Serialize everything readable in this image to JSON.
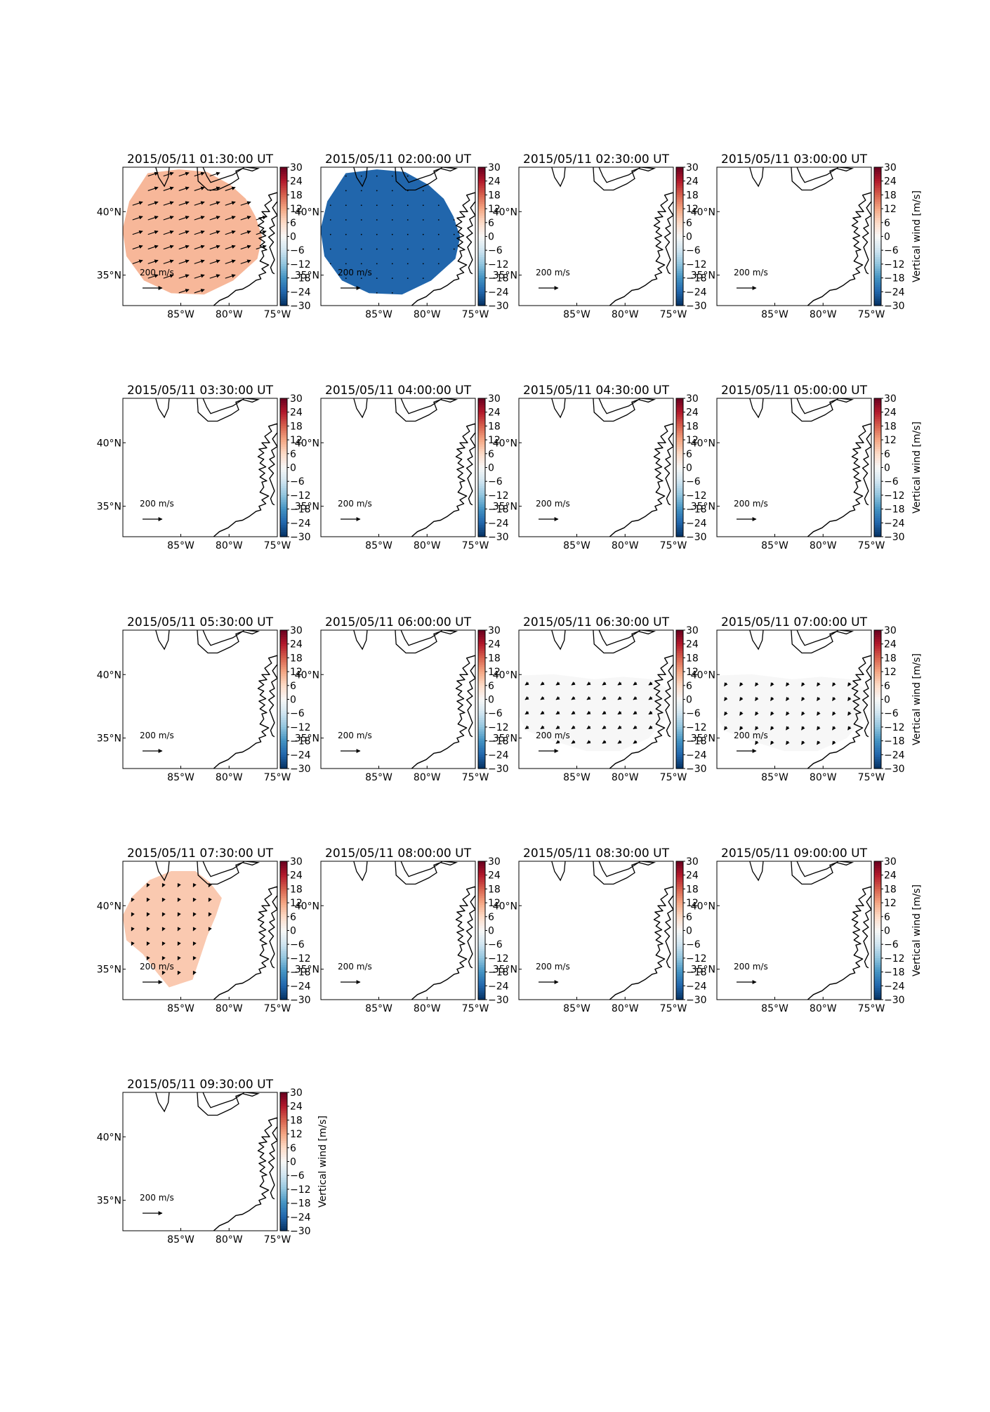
{
  "chart_data": {
    "type": "heatmap",
    "layout": {
      "rows": 5,
      "cols": 4
    },
    "xlim": [
      -91,
      -75
    ],
    "ylim": [
      32.6,
      43.5
    ],
    "xticks": [
      -85,
      -80,
      -75
    ],
    "xtick_labels": [
      "85°W",
      "80°W",
      "75°W"
    ],
    "yticks": [
      35,
      40
    ],
    "ytick_labels": [
      "35°N",
      "40°N"
    ],
    "colorbar": {
      "label": "Vertical wind [m/s]",
      "range": [
        -30,
        30
      ],
      "ticks": [
        30,
        24,
        18,
        12,
        6,
        0,
        -6,
        -12,
        -18,
        -24,
        -30
      ],
      "ticklabels": [
        "30",
        "24",
        "18",
        "12",
        "6",
        "0",
        "−6",
        "−12",
        "−18",
        "−24",
        "−30"
      ],
      "colormap": "RdBu_r"
    },
    "reference_vector": {
      "value": 200,
      "unit_numerator": "m",
      "unit_denominator": "s"
    },
    "panels": [
      {
        "title": "2015/05/11 01:30:00 UT",
        "vertical_wind": 10,
        "shape": "round",
        "vector": [
          9,
          3
        ],
        "colorbar_label": false
      },
      {
        "title": "2015/05/11 02:00:00 UT",
        "vertical_wind": -24,
        "shape": "round",
        "vector": [
          0,
          0
        ],
        "colorbar_label": false
      },
      {
        "title": "2015/05/11 02:30:00 UT",
        "vertical_wind": null,
        "colorbar_label": false
      },
      {
        "title": "2015/05/11 03:00:00 UT",
        "vertical_wind": null,
        "colorbar_label": true
      },
      {
        "title": "2015/05/11 03:30:00 UT",
        "vertical_wind": null,
        "colorbar_label": false
      },
      {
        "title": "2015/05/11 04:00:00 UT",
        "vertical_wind": null,
        "colorbar_label": false
      },
      {
        "title": "2015/05/11 04:30:00 UT",
        "vertical_wind": null,
        "colorbar_label": false
      },
      {
        "title": "2015/05/11 05:00:00 UT",
        "vertical_wind": null,
        "colorbar_label": true
      },
      {
        "title": "2015/05/11 05:30:00 UT",
        "vertical_wind": null,
        "colorbar_label": false
      },
      {
        "title": "2015/05/11 06:00:00 UT",
        "vertical_wind": null,
        "colorbar_label": false
      },
      {
        "title": "2015/05/11 06:30:00 UT",
        "vertical_wind": 0,
        "shape": "band",
        "vector": [
          -3,
          -2
        ],
        "colorbar_label": false
      },
      {
        "title": "2015/05/11 07:00:00 UT",
        "vertical_wind": 0,
        "shape": "band",
        "vector": [
          -2,
          -3
        ],
        "colorbar_label": true
      },
      {
        "title": "2015/05/11 07:30:00 UT",
        "vertical_wind": 8,
        "shape": "blob",
        "vector": [
          -1,
          -2
        ],
        "colorbar_label": false
      },
      {
        "title": "2015/05/11 08:00:00 UT",
        "vertical_wind": null,
        "colorbar_label": false
      },
      {
        "title": "2015/05/11 08:30:00 UT",
        "vertical_wind": null,
        "colorbar_label": false
      },
      {
        "title": "2015/05/11 09:00:00 UT",
        "vertical_wind": null,
        "colorbar_label": true
      },
      {
        "title": "2015/05/11 09:30:00 UT",
        "vertical_wind": null,
        "colorbar_label": true
      }
    ]
  }
}
